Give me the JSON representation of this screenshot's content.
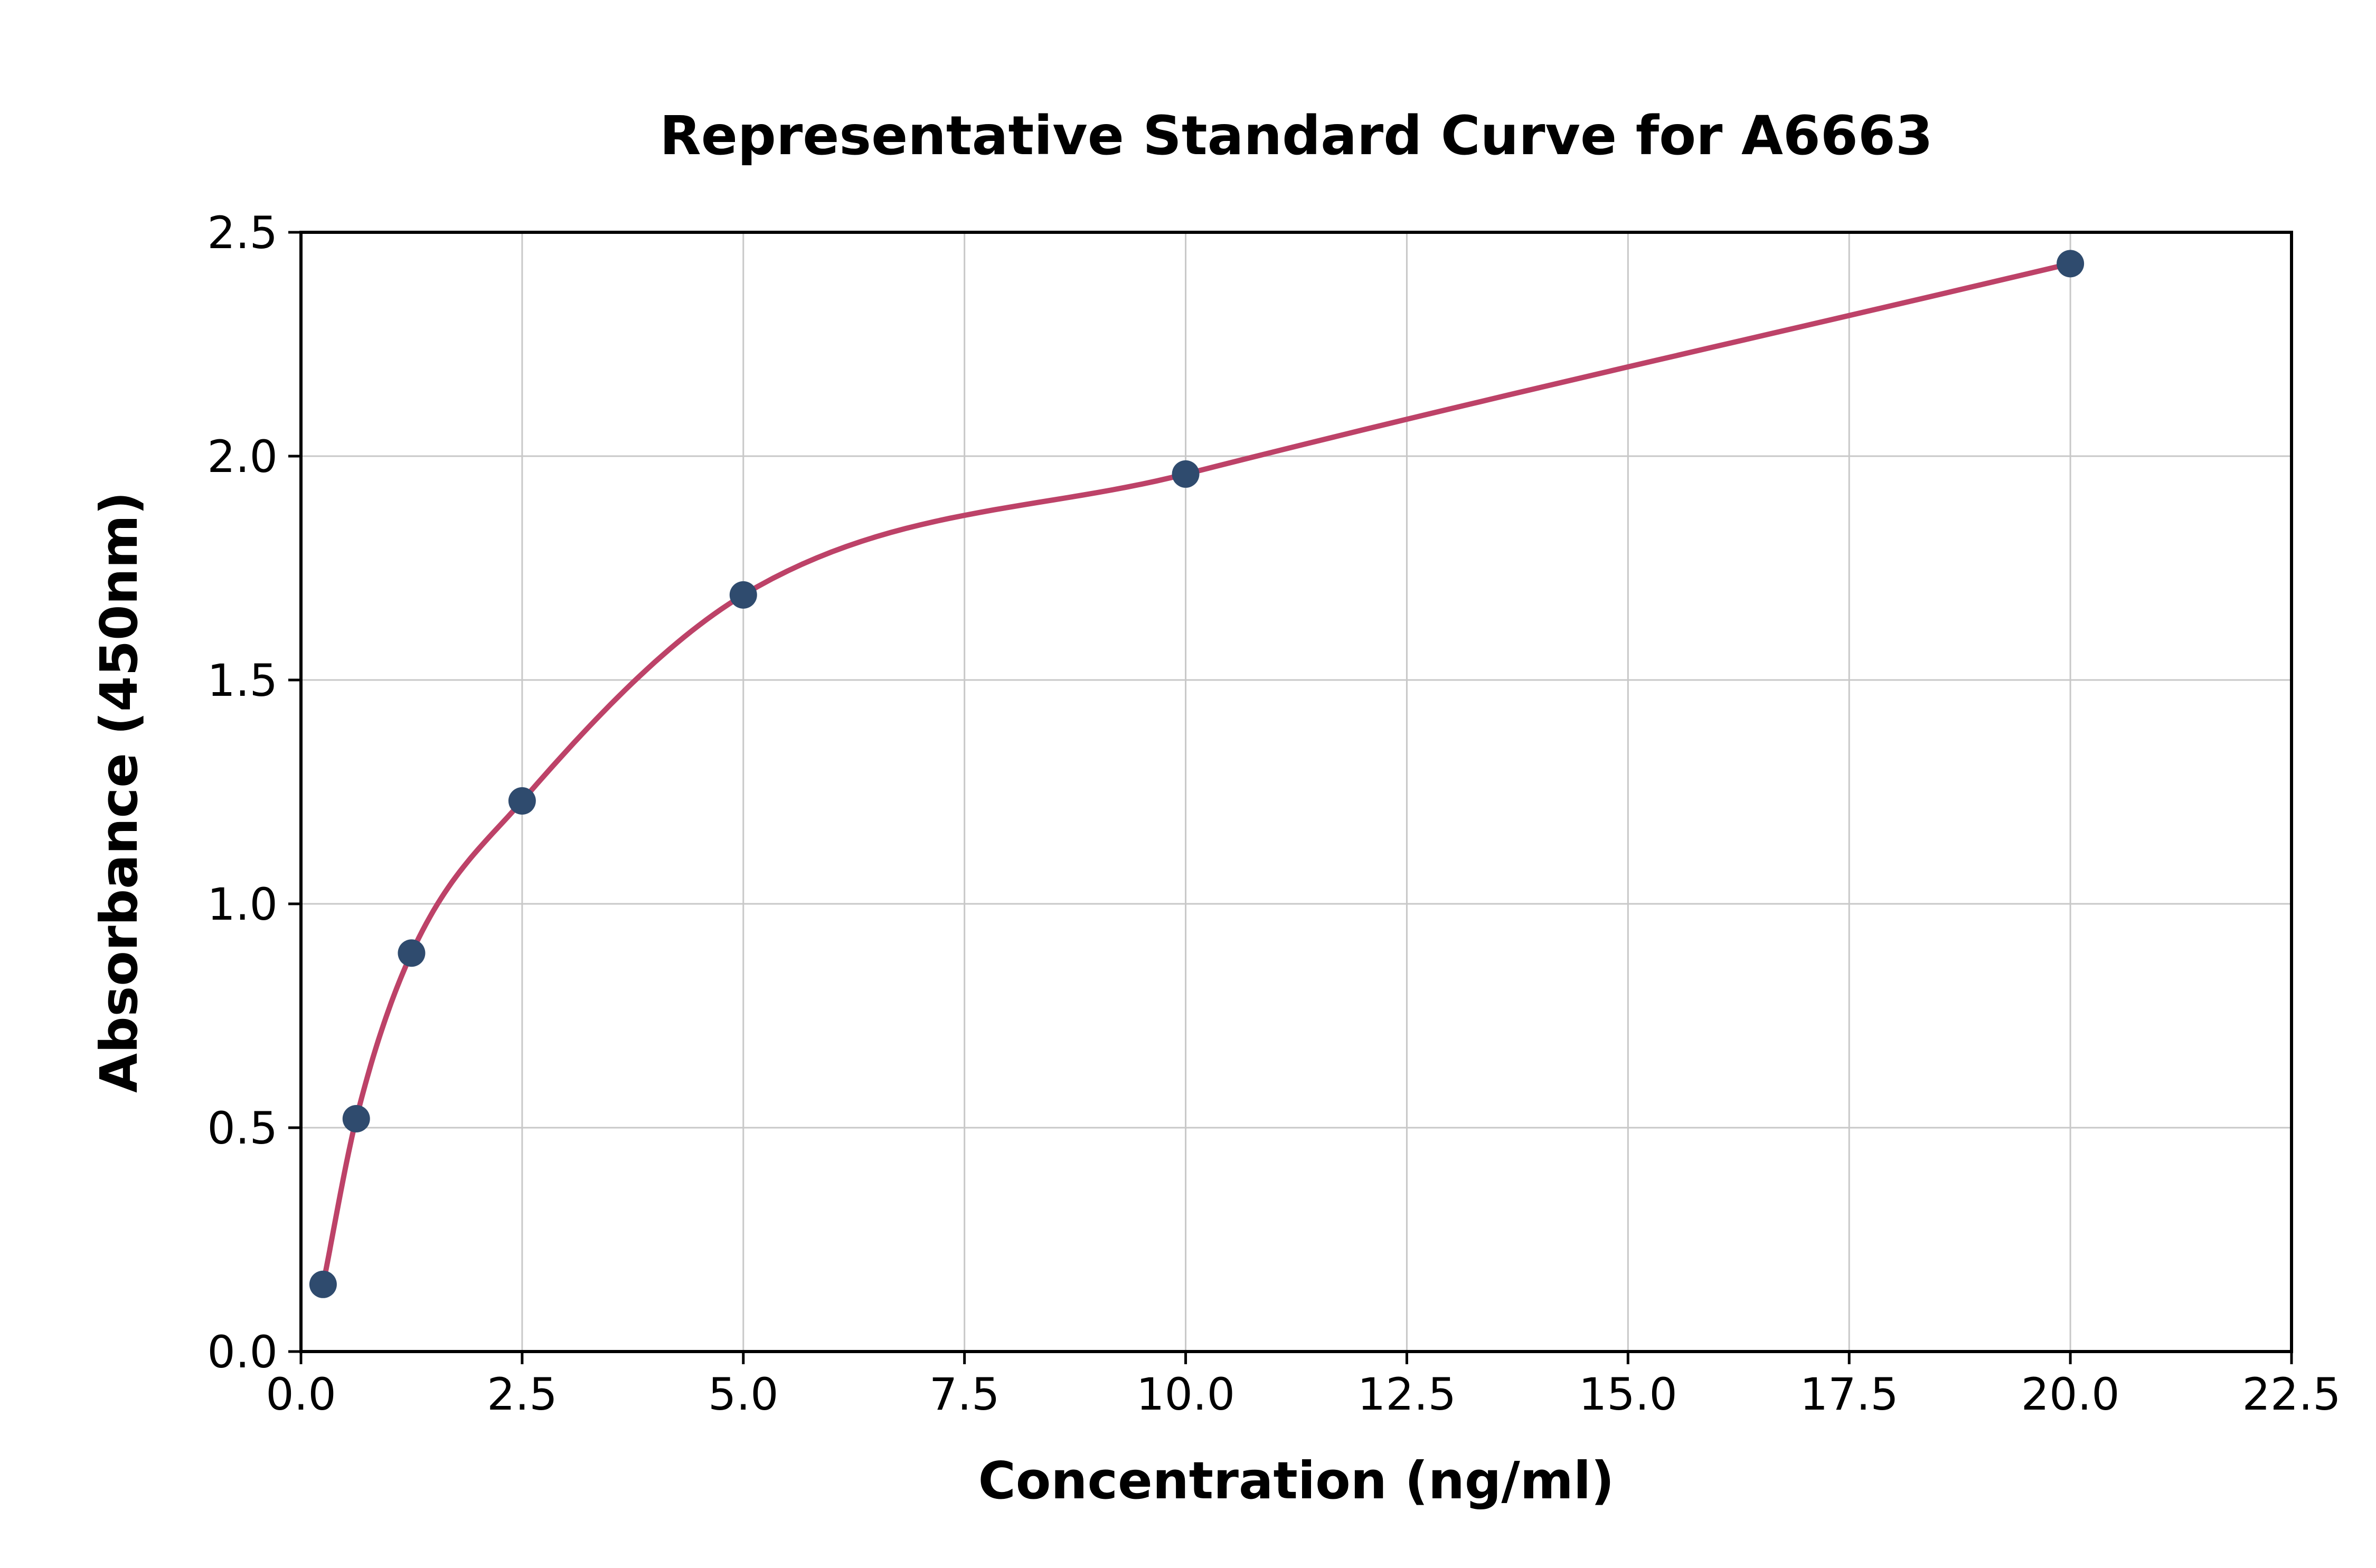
{
  "chart_data": {
    "type": "scatter",
    "title": "Representative Standard Curve for A6663",
    "xlabel": "Concentration (ng/ml)",
    "ylabel": "Absorbance (450nm)",
    "x": [
      0.25,
      0.625,
      1.25,
      2.5,
      5.0,
      10.0,
      20.0
    ],
    "y": [
      0.15,
      0.52,
      0.89,
      1.23,
      1.69,
      1.96,
      2.43
    ],
    "xlim": [
      0,
      22.5
    ],
    "ylim": [
      0,
      2.5
    ],
    "xticks": [
      0.0,
      2.5,
      5.0,
      7.5,
      10.0,
      12.5,
      15.0,
      17.5,
      20.0,
      22.5
    ],
    "yticks": [
      0.0,
      0.5,
      1.0,
      1.5,
      2.0,
      2.5
    ],
    "grid": true,
    "legend_position": "none",
    "marker_color": "#2f4b6e",
    "curve_color": "#bd4268",
    "grid_color": "#c8c8c8",
    "axis_color": "#000000",
    "background_color": "#ffffff"
  }
}
